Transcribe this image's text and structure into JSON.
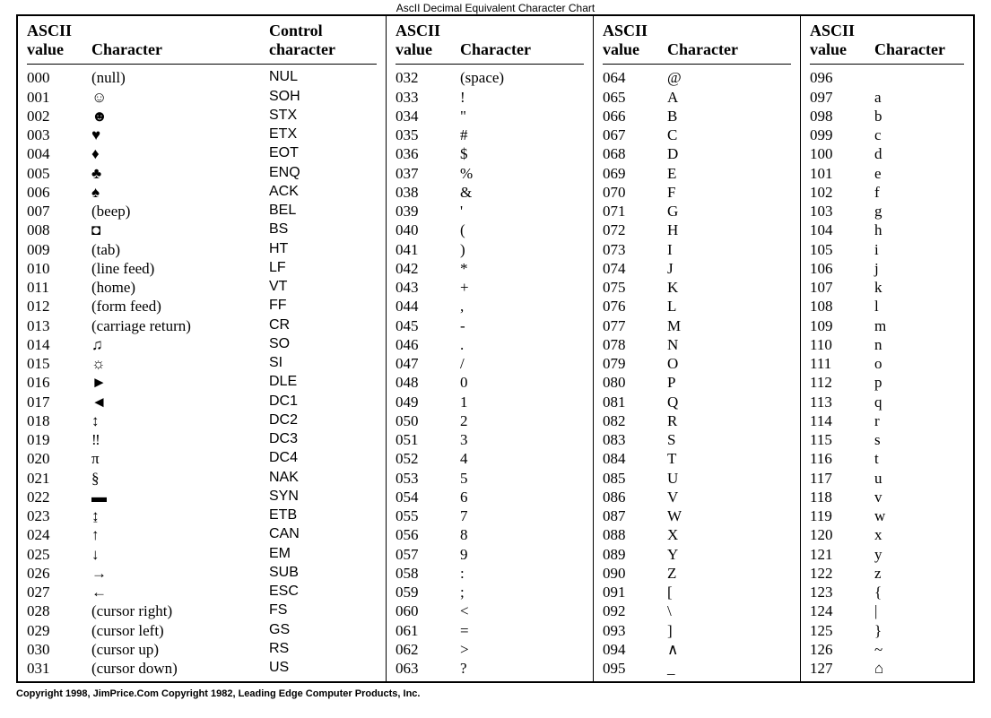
{
  "caption": "AscII Decimal Equivalent Character Chart",
  "headers": {
    "ascii_value_line1": "ASCII",
    "ascii_value_line2": "value",
    "character": "Character",
    "control_line1": "Control",
    "control_line2": "character"
  },
  "columns": [
    {
      "has_control": true,
      "rows": [
        {
          "v": "000",
          "c": "(null)",
          "ctrl": "NUL"
        },
        {
          "v": "001",
          "c": "☺",
          "ctrl": "SOH"
        },
        {
          "v": "002",
          "c": "☻",
          "ctrl": "STX"
        },
        {
          "v": "003",
          "c": "♥",
          "ctrl": "ETX"
        },
        {
          "v": "004",
          "c": "♦",
          "ctrl": "EOT"
        },
        {
          "v": "005",
          "c": "♣",
          "ctrl": "ENQ"
        },
        {
          "v": "006",
          "c": "♠",
          "ctrl": "ACK"
        },
        {
          "v": "007",
          "c": "(beep)",
          "ctrl": "BEL"
        },
        {
          "v": "008",
          "c": "◘",
          "ctrl": "BS"
        },
        {
          "v": "009",
          "c": "(tab)",
          "ctrl": "HT"
        },
        {
          "v": "010",
          "c": "(line feed)",
          "ctrl": "LF"
        },
        {
          "v": "011",
          "c": "(home)",
          "ctrl": "VT"
        },
        {
          "v": "012",
          "c": "(form feed)",
          "ctrl": "FF"
        },
        {
          "v": "013",
          "c": "(carriage return)",
          "ctrl": "CR"
        },
        {
          "v": "014",
          "c": "♫",
          "ctrl": "SO"
        },
        {
          "v": "015",
          "c": "☼",
          "ctrl": "SI"
        },
        {
          "v": "016",
          "c": "►",
          "ctrl": "DLE"
        },
        {
          "v": "017",
          "c": "◄",
          "ctrl": "DC1"
        },
        {
          "v": "018",
          "c": "↕",
          "ctrl": "DC2"
        },
        {
          "v": "019",
          "c": "‼",
          "ctrl": "DC3"
        },
        {
          "v": "020",
          "c": "π",
          "ctrl": "DC4"
        },
        {
          "v": "021",
          "c": "§",
          "ctrl": "NAK"
        },
        {
          "v": "022",
          "c": "▬",
          "ctrl": "SYN"
        },
        {
          "v": "023",
          "c": "↨",
          "ctrl": "ETB"
        },
        {
          "v": "024",
          "c": "↑",
          "ctrl": "CAN"
        },
        {
          "v": "025",
          "c": "↓",
          "ctrl": "EM"
        },
        {
          "v": "026",
          "c": "→",
          "ctrl": "SUB"
        },
        {
          "v": "027",
          "c": "←",
          "ctrl": "ESC"
        },
        {
          "v": "028",
          "c": "(cursor right)",
          "ctrl": "FS"
        },
        {
          "v": "029",
          "c": "(cursor left)",
          "ctrl": "GS"
        },
        {
          "v": "030",
          "c": "(cursor up)",
          "ctrl": "RS"
        },
        {
          "v": "031",
          "c": "(cursor down)",
          "ctrl": "US"
        }
      ]
    },
    {
      "has_control": false,
      "rows": [
        {
          "v": "032",
          "c": "(space)"
        },
        {
          "v": "033",
          "c": "!"
        },
        {
          "v": "034",
          "c": "\""
        },
        {
          "v": "035",
          "c": "#"
        },
        {
          "v": "036",
          "c": "$"
        },
        {
          "v": "037",
          "c": "%"
        },
        {
          "v": "038",
          "c": "&"
        },
        {
          "v": "039",
          "c": "'"
        },
        {
          "v": "040",
          "c": "("
        },
        {
          "v": "041",
          "c": ")"
        },
        {
          "v": "042",
          "c": "*"
        },
        {
          "v": "043",
          "c": "+"
        },
        {
          "v": "044",
          "c": ","
        },
        {
          "v": "045",
          "c": "-"
        },
        {
          "v": "046",
          "c": "."
        },
        {
          "v": "047",
          "c": "/"
        },
        {
          "v": "048",
          "c": "0"
        },
        {
          "v": "049",
          "c": "1"
        },
        {
          "v": "050",
          "c": "2"
        },
        {
          "v": "051",
          "c": "3"
        },
        {
          "v": "052",
          "c": "4"
        },
        {
          "v": "053",
          "c": "5"
        },
        {
          "v": "054",
          "c": "6"
        },
        {
          "v": "055",
          "c": "7"
        },
        {
          "v": "056",
          "c": "8"
        },
        {
          "v": "057",
          "c": "9"
        },
        {
          "v": "058",
          "c": ":"
        },
        {
          "v": "059",
          "c": ";"
        },
        {
          "v": "060",
          "c": "<"
        },
        {
          "v": "061",
          "c": "="
        },
        {
          "v": "062",
          "c": ">"
        },
        {
          "v": "063",
          "c": "?"
        }
      ]
    },
    {
      "has_control": false,
      "rows": [
        {
          "v": "064",
          "c": "@"
        },
        {
          "v": "065",
          "c": "A"
        },
        {
          "v": "066",
          "c": "B"
        },
        {
          "v": "067",
          "c": "C"
        },
        {
          "v": "068",
          "c": "D"
        },
        {
          "v": "069",
          "c": "E"
        },
        {
          "v": "070",
          "c": "F"
        },
        {
          "v": "071",
          "c": "G"
        },
        {
          "v": "072",
          "c": "H"
        },
        {
          "v": "073",
          "c": "I"
        },
        {
          "v": "074",
          "c": "J"
        },
        {
          "v": "075",
          "c": "K"
        },
        {
          "v": "076",
          "c": "L"
        },
        {
          "v": "077",
          "c": "M"
        },
        {
          "v": "078",
          "c": "N"
        },
        {
          "v": "079",
          "c": "O"
        },
        {
          "v": "080",
          "c": "P"
        },
        {
          "v": "081",
          "c": "Q"
        },
        {
          "v": "082",
          "c": "R"
        },
        {
          "v": "083",
          "c": "S"
        },
        {
          "v": "084",
          "c": "T"
        },
        {
          "v": "085",
          "c": "U"
        },
        {
          "v": "086",
          "c": "V"
        },
        {
          "v": "087",
          "c": "W"
        },
        {
          "v": "088",
          "c": "X"
        },
        {
          "v": "089",
          "c": "Y"
        },
        {
          "v": "090",
          "c": "Z"
        },
        {
          "v": "091",
          "c": "["
        },
        {
          "v": "092",
          "c": "\\"
        },
        {
          "v": "093",
          "c": "]"
        },
        {
          "v": "094",
          "c": "∧"
        },
        {
          "v": "095",
          "c": "_"
        }
      ]
    },
    {
      "has_control": false,
      "rows": [
        {
          "v": "096",
          "c": ""
        },
        {
          "v": "097",
          "c": "a"
        },
        {
          "v": "098",
          "c": "b"
        },
        {
          "v": "099",
          "c": "c"
        },
        {
          "v": "100",
          "c": "d"
        },
        {
          "v": "101",
          "c": "e"
        },
        {
          "v": "102",
          "c": "f"
        },
        {
          "v": "103",
          "c": "g"
        },
        {
          "v": "104",
          "c": "h"
        },
        {
          "v": "105",
          "c": "i"
        },
        {
          "v": "106",
          "c": "j"
        },
        {
          "v": "107",
          "c": "k"
        },
        {
          "v": "108",
          "c": "l"
        },
        {
          "v": "109",
          "c": "m"
        },
        {
          "v": "110",
          "c": "n"
        },
        {
          "v": "111",
          "c": "o"
        },
        {
          "v": "112",
          "c": "p"
        },
        {
          "v": "113",
          "c": "q"
        },
        {
          "v": "114",
          "c": "r"
        },
        {
          "v": "115",
          "c": "s"
        },
        {
          "v": "116",
          "c": "t"
        },
        {
          "v": "117",
          "c": "u"
        },
        {
          "v": "118",
          "c": "v"
        },
        {
          "v": "119",
          "c": "w"
        },
        {
          "v": "120",
          "c": "x"
        },
        {
          "v": "121",
          "c": "y"
        },
        {
          "v": "122",
          "c": "z"
        },
        {
          "v": "123",
          "c": "{"
        },
        {
          "v": "124",
          "c": "|"
        },
        {
          "v": "125",
          "c": "}"
        },
        {
          "v": "126",
          "c": "~"
        },
        {
          "v": "127",
          "c": "⌂"
        }
      ]
    }
  ],
  "footer": "Copyright 1998, JimPrice.Com   Copyright 1982, Leading Edge Computer Products, Inc."
}
